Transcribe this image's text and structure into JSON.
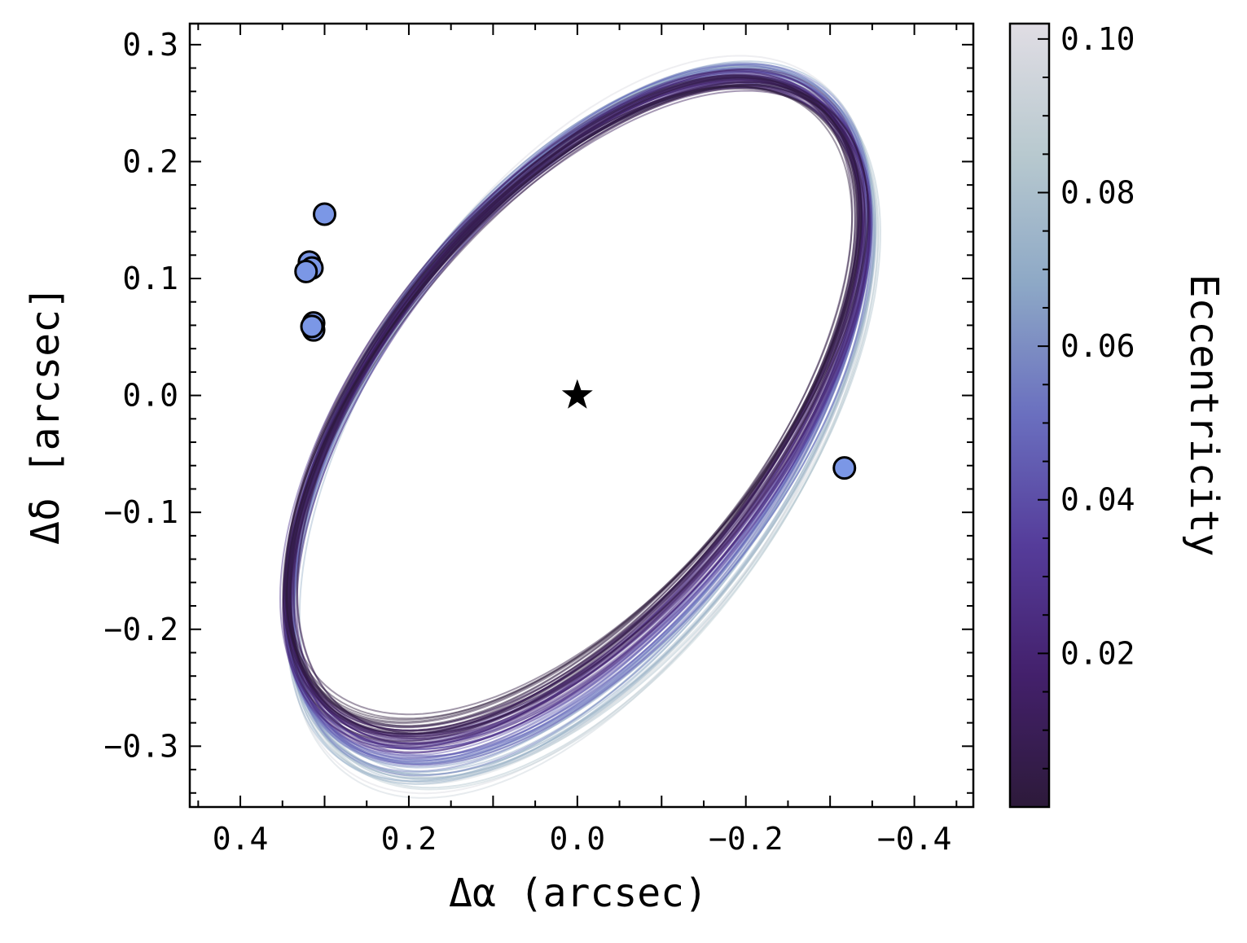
{
  "chart_data": {
    "type": "scatter",
    "xlabel": "Δα (arcsec)",
    "ylabel": "Δδ [arcsec]",
    "colorbar_label": "Eccentricity",
    "xlim": [
      0.46,
      -0.47
    ],
    "ylim": [
      -0.352,
      0.318
    ],
    "x_ticks": [
      0.4,
      0.2,
      0.0,
      -0.2,
      -0.4
    ],
    "x_tick_labels": [
      "0.4",
      "0.2",
      "0.0",
      "−0.2",
      "−0.4"
    ],
    "y_ticks": [
      0.3,
      0.2,
      0.1,
      0.0,
      -0.1,
      -0.2,
      -0.3
    ],
    "y_tick_labels": [
      "0.3",
      "0.2",
      "0.1",
      "0.0",
      "−0.1",
      "−0.2",
      "−0.3"
    ],
    "colorbar_range": [
      0.0,
      0.102
    ],
    "colorbar_ticks": [
      0.02,
      0.04,
      0.06,
      0.08,
      0.1
    ],
    "colorbar_tick_labels": [
      "0.02",
      "0.04",
      "0.06",
      "0.08",
      "0.10"
    ],
    "colormap_stops": [
      "#2d1a3a",
      "#43206b",
      "#553c9a",
      "#6a6fbf",
      "#8da8c6",
      "#b8c9cf",
      "#e0dde4"
    ],
    "star": {
      "x": 0.0,
      "y": 0.0,
      "color": "#000000"
    },
    "observations": {
      "color": "#7b97e6",
      "edge_color": "#000000",
      "points": [
        {
          "x": 0.3,
          "y": 0.155
        },
        {
          "x": 0.318,
          "y": 0.114
        },
        {
          "x": 0.315,
          "y": 0.109
        },
        {
          "x": 0.322,
          "y": 0.106
        },
        {
          "x": 0.313,
          "y": 0.062
        },
        {
          "x": 0.313,
          "y": 0.056
        },
        {
          "x": 0.315,
          "y": 0.059
        },
        {
          "x": -0.317,
          "y": -0.062
        }
      ]
    },
    "orbit_model": {
      "description_values": "center_x, center_y, semi_major, semi_minor, rotation_deg per drawn orbit sample",
      "base_center": [
        0.004,
        -0.007
      ],
      "base_semi_major": 0.392,
      "base_semi_minor": 0.193,
      "base_rotation_deg": -35,
      "n_orbits": 90,
      "eccentricity_range": [
        0.0,
        0.1
      ]
    }
  }
}
